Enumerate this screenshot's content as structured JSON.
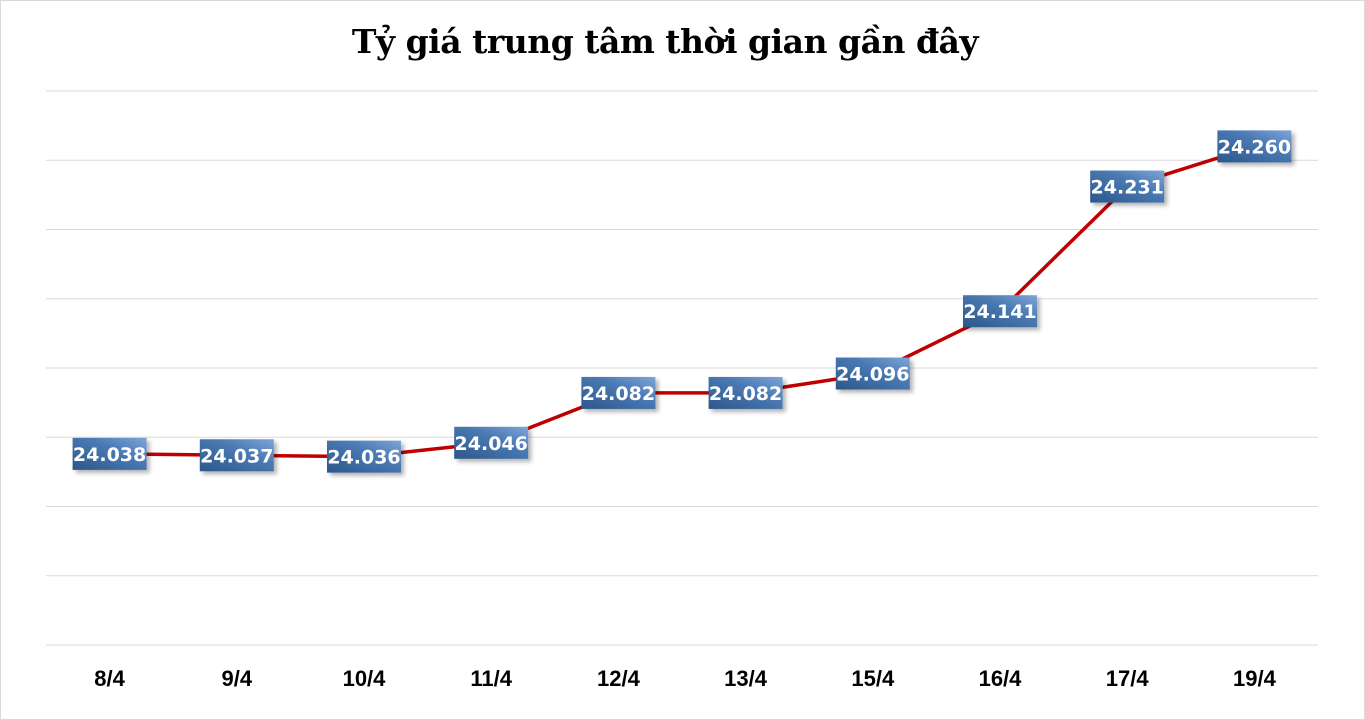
{
  "chart_data": {
    "type": "line",
    "title": "Tỷ giá trung tâm thời gian gần đây",
    "xlabel": "",
    "ylabel": "",
    "categories": [
      "8/4",
      "9/4",
      "10/4",
      "11/4",
      "12/4",
      "13/4",
      "15/4",
      "16/4",
      "17/4",
      "19/4"
    ],
    "series": [
      {
        "name": "Tỷ giá trung tâm",
        "values": [
          24.038,
          24.037,
          24.036,
          24.046,
          24.082,
          24.082,
          24.096,
          24.141,
          24.231,
          24.26
        ],
        "labels": [
          "24.038",
          "24.037",
          "24.036",
          "24.046",
          "24.082",
          "24.082",
          "24.096",
          "24.141",
          "24.231",
          "24.260"
        ]
      }
    ],
    "ylim": [
      23.9,
      24.3
    ],
    "grid": true,
    "y_axis_labels_visible": false,
    "legend": "none",
    "colors": {
      "line": "#c00000",
      "label_bg_start": "#2e5a8e",
      "label_bg_end": "#5b8cc6",
      "grid": "#d9d9d9"
    }
  }
}
